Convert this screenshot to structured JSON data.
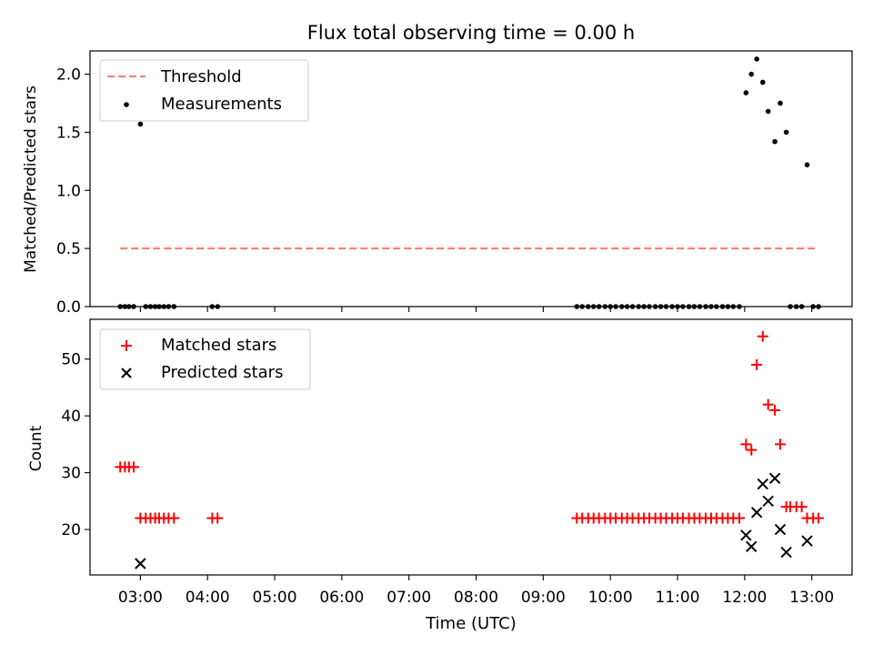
{
  "figure": {
    "title": "Flux total observing time = 0.00 h"
  },
  "colors": {
    "threshold": "#ff7f7f",
    "measurements": "#000000",
    "matched": "#ff0000",
    "predicted": "#000000"
  },
  "chart_data": [
    {
      "id": "ratio",
      "type": "scatter",
      "ylabel": "Matched/Predicted stars",
      "xlim": [
        2.25,
        13.6
      ],
      "ylim": [
        0,
        2.2
      ],
      "yticks": [
        0.0,
        0.5,
        1.0,
        1.5,
        2.0
      ],
      "ytick_labels": [
        "0.0",
        "0.5",
        "1.0",
        "1.5",
        "2.0"
      ],
      "legend_position": "upper-left",
      "threshold": {
        "name": "Threshold",
        "value": 0.5,
        "x_range": [
          2.7,
          13.05
        ]
      },
      "series": [
        {
          "name": "Measurements",
          "marker": "dot",
          "points": [
            [
              2.7,
              0
            ],
            [
              2.77,
              0
            ],
            [
              2.83,
              0
            ],
            [
              2.9,
              0
            ],
            [
              3.0,
              1.57
            ],
            [
              3.08,
              0
            ],
            [
              3.15,
              0
            ],
            [
              3.22,
              0
            ],
            [
              3.28,
              0
            ],
            [
              3.35,
              0
            ],
            [
              3.42,
              0
            ],
            [
              3.5,
              0
            ],
            [
              4.07,
              0
            ],
            [
              4.15,
              0
            ],
            [
              9.5,
              0
            ],
            [
              9.58,
              0
            ],
            [
              9.67,
              0
            ],
            [
              9.75,
              0
            ],
            [
              9.83,
              0
            ],
            [
              9.92,
              0
            ],
            [
              10.0,
              0
            ],
            [
              10.08,
              0
            ],
            [
              10.17,
              0
            ],
            [
              10.25,
              0
            ],
            [
              10.33,
              0
            ],
            [
              10.42,
              0
            ],
            [
              10.5,
              0
            ],
            [
              10.58,
              0
            ],
            [
              10.67,
              0
            ],
            [
              10.75,
              0
            ],
            [
              10.83,
              0
            ],
            [
              10.92,
              0
            ],
            [
              11.0,
              0
            ],
            [
              11.08,
              0
            ],
            [
              11.17,
              0
            ],
            [
              11.25,
              0
            ],
            [
              11.33,
              0
            ],
            [
              11.42,
              0
            ],
            [
              11.5,
              0
            ],
            [
              11.58,
              0
            ],
            [
              11.67,
              0
            ],
            [
              11.75,
              0
            ],
            [
              11.83,
              0
            ],
            [
              11.92,
              0
            ],
            [
              12.02,
              1.84
            ],
            [
              12.1,
              2.0
            ],
            [
              12.18,
              2.13
            ],
            [
              12.27,
              1.93
            ],
            [
              12.35,
              1.68
            ],
            [
              12.45,
              1.42
            ],
            [
              12.53,
              1.75
            ],
            [
              12.62,
              1.5
            ],
            [
              12.68,
              0
            ],
            [
              12.77,
              0
            ],
            [
              12.85,
              0
            ],
            [
              12.93,
              1.22
            ],
            [
              13.02,
              0
            ],
            [
              13.1,
              0
            ]
          ]
        }
      ]
    },
    {
      "id": "count",
      "type": "scatter",
      "ylabel": "Count",
      "xlabel": "Time (UTC)",
      "xlim": [
        2.25,
        13.6
      ],
      "ylim": [
        12,
        57
      ],
      "yticks": [
        20,
        30,
        40,
        50
      ],
      "ytick_labels": [
        "20",
        "30",
        "40",
        "50"
      ],
      "xticks": [
        3,
        4,
        5,
        6,
        7,
        8,
        9,
        10,
        11,
        12,
        13
      ],
      "xtick_labels": [
        "03:00",
        "04:00",
        "05:00",
        "06:00",
        "07:00",
        "08:00",
        "09:00",
        "10:00",
        "11:00",
        "12:00",
        "13:00"
      ],
      "legend_position": "upper-left",
      "series": [
        {
          "name": "Matched stars",
          "marker": "plus",
          "points": [
            [
              2.7,
              31
            ],
            [
              2.77,
              31
            ],
            [
              2.83,
              31
            ],
            [
              2.9,
              31
            ],
            [
              3.0,
              22
            ],
            [
              3.08,
              22
            ],
            [
              3.15,
              22
            ],
            [
              3.22,
              22
            ],
            [
              3.28,
              22
            ],
            [
              3.35,
              22
            ],
            [
              3.42,
              22
            ],
            [
              3.5,
              22
            ],
            [
              4.07,
              22
            ],
            [
              4.15,
              22
            ],
            [
              9.5,
              22
            ],
            [
              9.58,
              22
            ],
            [
              9.67,
              22
            ],
            [
              9.75,
              22
            ],
            [
              9.83,
              22
            ],
            [
              9.92,
              22
            ],
            [
              10.0,
              22
            ],
            [
              10.08,
              22
            ],
            [
              10.17,
              22
            ],
            [
              10.25,
              22
            ],
            [
              10.33,
              22
            ],
            [
              10.42,
              22
            ],
            [
              10.5,
              22
            ],
            [
              10.58,
              22
            ],
            [
              10.67,
              22
            ],
            [
              10.75,
              22
            ],
            [
              10.83,
              22
            ],
            [
              10.92,
              22
            ],
            [
              11.0,
              22
            ],
            [
              11.08,
              22
            ],
            [
              11.17,
              22
            ],
            [
              11.25,
              22
            ],
            [
              11.33,
              22
            ],
            [
              11.42,
              22
            ],
            [
              11.5,
              22
            ],
            [
              11.58,
              22
            ],
            [
              11.67,
              22
            ],
            [
              11.75,
              22
            ],
            [
              11.83,
              22
            ],
            [
              11.92,
              22
            ],
            [
              12.02,
              35
            ],
            [
              12.1,
              34
            ],
            [
              12.18,
              49
            ],
            [
              12.27,
              54
            ],
            [
              12.35,
              42
            ],
            [
              12.45,
              41
            ],
            [
              12.53,
              35
            ],
            [
              12.62,
              24
            ],
            [
              12.68,
              24
            ],
            [
              12.77,
              24
            ],
            [
              12.85,
              24
            ],
            [
              12.93,
              22
            ],
            [
              13.02,
              22
            ],
            [
              13.1,
              22
            ]
          ]
        },
        {
          "name": "Predicted stars",
          "marker": "x",
          "points": [
            [
              3.0,
              14
            ],
            [
              12.02,
              19
            ],
            [
              12.1,
              17
            ],
            [
              12.18,
              23
            ],
            [
              12.27,
              28
            ],
            [
              12.35,
              25
            ],
            [
              12.45,
              29
            ],
            [
              12.53,
              20
            ],
            [
              12.62,
              16
            ],
            [
              12.93,
              18
            ]
          ]
        }
      ]
    }
  ]
}
